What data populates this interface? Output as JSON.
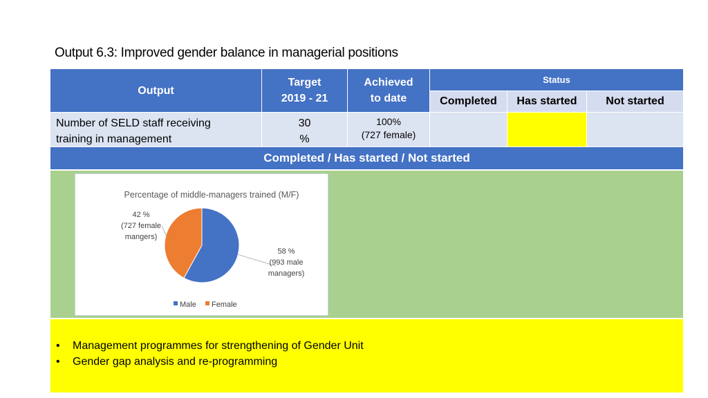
{
  "title": "Output 6.3: Improved gender balance in managerial positions",
  "table": {
    "header": {
      "output": "Output",
      "target_line1": "Target",
      "target_line2": "2019 - 21",
      "achieved_line1": "Achieved",
      "achieved_line2": "to date",
      "status": "Status",
      "completed": "Completed",
      "has_started": "Has started",
      "not_started": "Not started"
    },
    "row": {
      "output_line1": "Number of SELD staff receiving",
      "output_line2": "training in management",
      "target_line1": "30",
      "target_line2": "%",
      "achieved_line1": "100%",
      "achieved_line2": "(727 female)",
      "status_highlight": "has_started",
      "highlight_color": "#ffff00"
    },
    "band": "Completed / Has started / Not started"
  },
  "chart_data": {
    "type": "pie",
    "title": "Percentage of middle-managers trained (M/F)",
    "categories": [
      "Male",
      "Female"
    ],
    "values": [
      58,
      42
    ],
    "colors": [
      "#4472c4",
      "#ed7d31"
    ],
    "data_labels": [
      {
        "line1": "58 %",
        "line2": "(993 male",
        "line3": "managers)"
      },
      {
        "line1": "42 %",
        "line2": "(727 female",
        "line3": "mangers)"
      }
    ],
    "legend": "bottom"
  },
  "bullets": [
    "Management programmes for strengthening of Gender Unit",
    "Gender gap analysis and re-programming"
  ]
}
